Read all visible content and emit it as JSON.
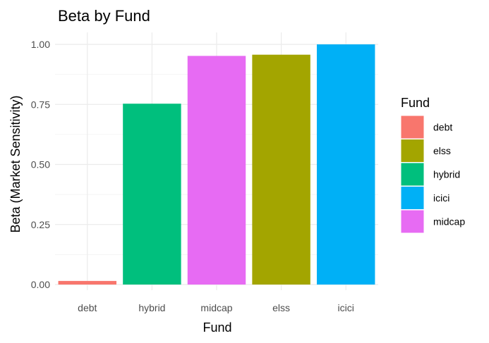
{
  "chart_data": {
    "type": "bar",
    "title": "Beta by Fund",
    "xlabel": "Fund",
    "ylabel": "Beta (Market Sensitivity)",
    "categories": [
      "debt",
      "hybrid",
      "midcap",
      "elss",
      "icici"
    ],
    "values": [
      0.015,
      0.753,
      0.952,
      0.957,
      1.0
    ],
    "colors": [
      "#F8766D",
      "#00BF7D",
      "#E76BF3",
      "#A3A500",
      "#00B0F6"
    ],
    "ylim": [
      0,
      1.0
    ],
    "yticks": [
      0.0,
      0.25,
      0.5,
      0.75,
      1.0
    ],
    "ytick_labels": [
      "0.00",
      "0.25",
      "0.50",
      "0.75",
      "1.00"
    ],
    "grid": true,
    "legend": {
      "title": "Fund",
      "position": "right",
      "entries": [
        {
          "label": "debt",
          "color": "#F8766D"
        },
        {
          "label": "elss",
          "color": "#A3A500"
        },
        {
          "label": "hybrid",
          "color": "#00BF7D"
        },
        {
          "label": "icici",
          "color": "#00B0F6"
        },
        {
          "label": "midcap",
          "color": "#E76BF3"
        }
      ]
    }
  }
}
